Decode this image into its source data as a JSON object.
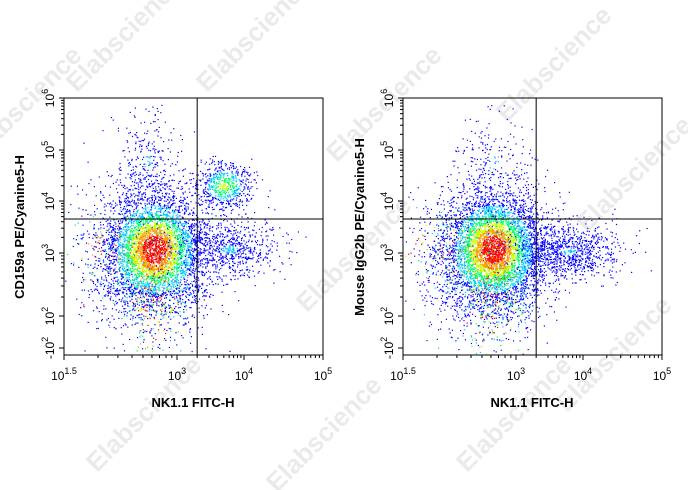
{
  "watermark": "Elabscience",
  "chart_data": [
    {
      "type": "scatter",
      "xlabel": "NK1.1 FITC-H",
      "ylabel": "CD159a PE/Cyanine5-H",
      "x_scale": "biexponential",
      "y_scale": "biexponential",
      "x_ticks": [
        {
          "base": "10",
          "exp": "1.5"
        },
        {
          "base": "10",
          "exp": "3"
        },
        {
          "base": "10",
          "exp": "4"
        },
        {
          "base": "10",
          "exp": "5"
        }
      ],
      "y_ticks": [
        {
          "sign": "-",
          "base": "10",
          "exp": "2"
        },
        {
          "sign": "",
          "base": "10",
          "exp": "2"
        },
        {
          "sign": "",
          "base": "10",
          "exp": "3"
        },
        {
          "sign": "",
          "base": "10",
          "exp": "4"
        },
        {
          "sign": "",
          "base": "10",
          "exp": "5"
        },
        {
          "sign": "",
          "base": "10",
          "exp": "6"
        }
      ],
      "quadrant_gate": {
        "x": 2000,
        "y": 4500
      },
      "populations": [
        {
          "name_hidden": "main",
          "center": [
            500,
            1200
          ],
          "count": 5200,
          "density": "high"
        },
        {
          "name_hidden": "nk_cd159a_pos",
          "center": [
            5000,
            20000
          ],
          "count": 600,
          "density": "medium"
        },
        {
          "name_hidden": "nk_cd159a_neg",
          "center": [
            6000,
            1200
          ],
          "count": 700,
          "density": "low"
        },
        {
          "name_hidden": "cd159a_pos_nk_neg",
          "center": [
            400,
            60000
          ],
          "count": 250,
          "density": "low"
        }
      ],
      "colors": [
        "#0000ff",
        "#00c8ff",
        "#00ff66",
        "#c8ff00",
        "#ff9900",
        "#ff0000"
      ]
    },
    {
      "type": "scatter",
      "xlabel": "NK1.1 FITC-H",
      "ylabel": "Mouse IgG2b PE/Cyanine5-H",
      "x_scale": "biexponential",
      "y_scale": "biexponential",
      "x_ticks": [
        {
          "base": "10",
          "exp": "1.5"
        },
        {
          "base": "10",
          "exp": "3"
        },
        {
          "base": "10",
          "exp": "4"
        },
        {
          "base": "10",
          "exp": "5"
        }
      ],
      "y_ticks": [
        {
          "sign": "-",
          "base": "10",
          "exp": "2"
        },
        {
          "sign": "",
          "base": "10",
          "exp": "2"
        },
        {
          "sign": "",
          "base": "10",
          "exp": "3"
        },
        {
          "sign": "",
          "base": "10",
          "exp": "4"
        },
        {
          "sign": "",
          "base": "10",
          "exp": "5"
        },
        {
          "sign": "",
          "base": "10",
          "exp": "6"
        }
      ],
      "quadrant_gate": {
        "x": 2000,
        "y": 4500
      },
      "populations": [
        {
          "name_hidden": "main",
          "center": [
            500,
            1200
          ],
          "count": 5600,
          "density": "high"
        },
        {
          "name_hidden": "nk_pos",
          "center": [
            6000,
            1100
          ],
          "count": 900,
          "density": "low"
        },
        {
          "name_hidden": "background_high",
          "center": [
            500,
            60000
          ],
          "count": 180,
          "density": "low"
        }
      ],
      "colors": [
        "#0000ff",
        "#00c8ff",
        "#00ff66",
        "#c8ff00",
        "#ff9900",
        "#ff0000"
      ]
    }
  ]
}
